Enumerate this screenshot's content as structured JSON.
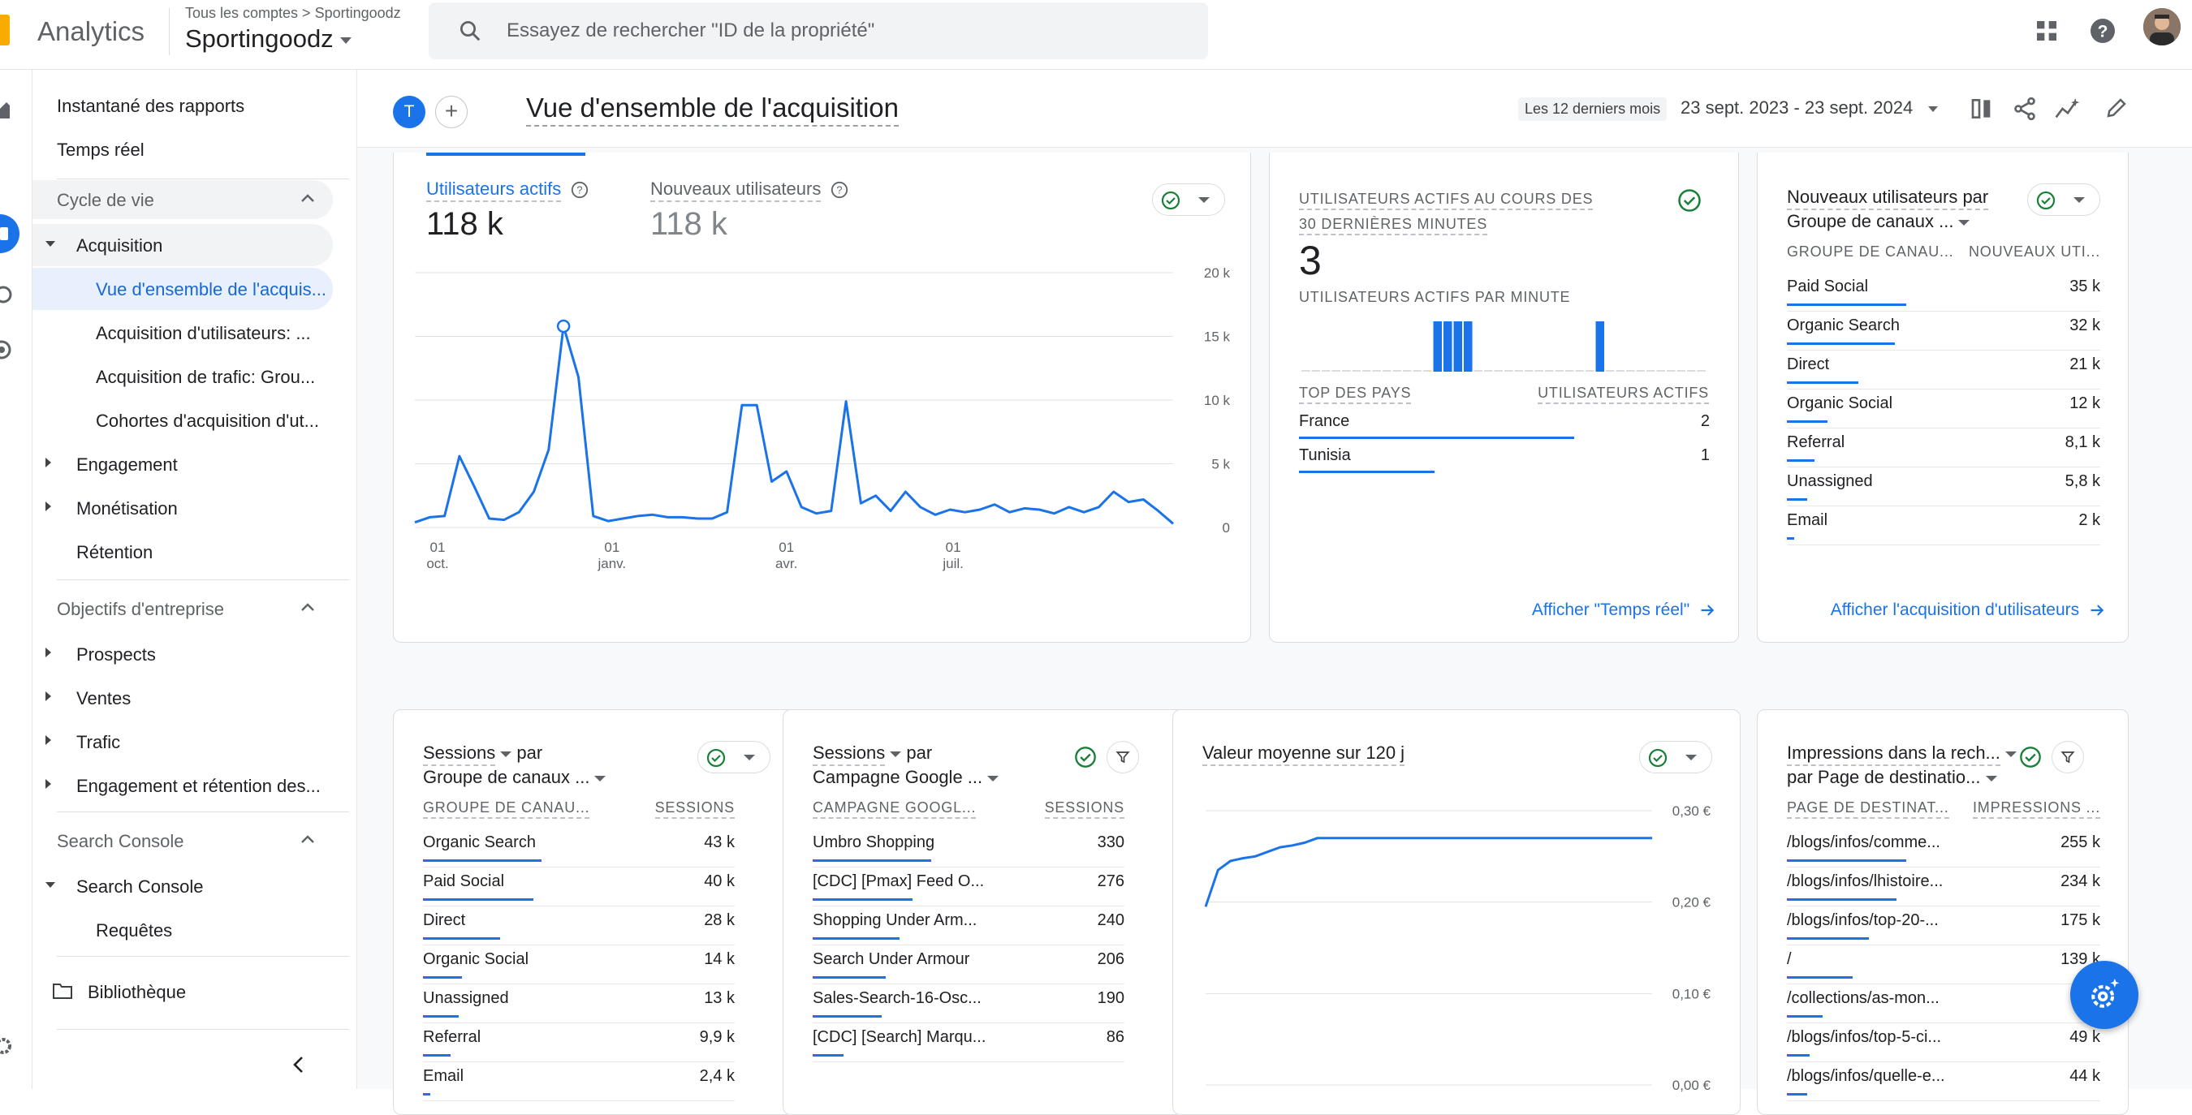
{
  "topbar": {
    "app_name": "Analytics",
    "breadcrumb": "Tous les comptes > Sportingoodz",
    "property": "Sportingoodz",
    "search_placeholder": "Essayez de rechercher \"ID de la propriété\""
  },
  "nav": {
    "snapshot": "Instantané des rapports",
    "realtime": "Temps réel",
    "lifecycle": "Cycle de vie",
    "acquisition": "Acquisition",
    "acq_overview": "Vue d'ensemble de l'acquis...",
    "acq_users": "Acquisition d'utilisateurs: ...",
    "acq_traffic": "Acquisition de trafic: Grou...",
    "acq_cohorts": "Cohortes d'acquisition d'ut...",
    "engagement": "Engagement",
    "monetization": "Monétisation",
    "retention": "Rétention",
    "business": "Objectifs d'entreprise",
    "leads": "Prospects",
    "sales": "Ventes",
    "traffic": "Trafic",
    "engagement_retention": "Engagement et rétention des...",
    "search_console_section": "Search Console",
    "search_console": "Search Console",
    "queries": "Requêtes",
    "library": "Bibliothèque"
  },
  "header": {
    "avatar_letter": "T",
    "add": "+",
    "title": "Vue d'ensemble de l'acquisition",
    "range_label": "Les 12 derniers mois",
    "range_value": "23 sept. 2023 - 23 sept. 2024"
  },
  "users_card": {
    "active_label": "Utilisateurs actifs",
    "active_value": "118 k",
    "new_label": "Nouveaux utilisateurs",
    "new_value": "118 k"
  },
  "chart_data": [
    {
      "type": "line",
      "title": "",
      "series": [
        {
          "name": "Utilisateurs actifs",
          "values": [
            400,
            800,
            900,
            5600,
            3200,
            700,
            600,
            1200,
            2800,
            6100,
            15800,
            11800,
            900,
            500,
            700,
            900,
            1000,
            800,
            800,
            700,
            700,
            1200,
            9600,
            9600,
            3600,
            4400,
            1600,
            1100,
            1300,
            9900,
            1900,
            2500,
            1300,
            2800,
            1600,
            1000,
            1400,
            1200,
            1400,
            1800,
            1200,
            1500,
            1400,
            1100,
            1600,
            1200,
            1600,
            2800,
            2000,
            2200,
            1300,
            300
          ]
        }
      ],
      "x_ticks": [
        "01 oct.",
        "01 janv.",
        "01 avr.",
        "01 juil."
      ],
      "y_ticks": [
        "20 k",
        "15 k",
        "10 k",
        "5 k",
        "0"
      ],
      "ylim": [
        0,
        20000
      ]
    },
    {
      "type": "bar",
      "title": "UTILISATEURS ACTIFS PAR MINUTE",
      "values": [
        0,
        0,
        0,
        0,
        0,
        0,
        0,
        0,
        0,
        0,
        0,
        0,
        0,
        1,
        1,
        1,
        1,
        0,
        0,
        0,
        0,
        0,
        0,
        0,
        0,
        0,
        0,
        0,
        0,
        1,
        0,
        0,
        0,
        0,
        0,
        0,
        0,
        0,
        0,
        0
      ]
    },
    {
      "type": "line",
      "title": "Valeur moyenne sur 120 j",
      "series": [
        {
          "name": "Valeur moyenne sur 120 j",
          "values": [
            0.195,
            0.235,
            0.245,
            0.248,
            0.25,
            0.255,
            0.26,
            0.262,
            0.265,
            0.27,
            0.27,
            0.27,
            0.27,
            0.27,
            0.27,
            0.27,
            0.27,
            0.27,
            0.27,
            0.27,
            0.27,
            0.27,
            0.27,
            0.27,
            0.27,
            0.27,
            0.27,
            0.27,
            0.27,
            0.27,
            0.27,
            0.27,
            0.27,
            0.27,
            0.27,
            0.27,
            0.27
          ]
        }
      ],
      "y_ticks": [
        "0,30 €",
        "0,20 €",
        "0,10 €",
        "0,00 €"
      ],
      "ylim": [
        0,
        0.3
      ]
    }
  ],
  "realtime_card": {
    "title_line1": "UTILISATEURS ACTIFS AU COURS DES",
    "title_line2": "30 DERNIÈRES MINUTES",
    "value": "3",
    "per_minute": "UTILISATEURS ACTIFS PAR MINUTE",
    "col_country": "TOP DES PAYS",
    "col_users": "UTILISATEURS ACTIFS",
    "rows": [
      {
        "name": "France",
        "value": "2",
        "share": 0.67
      },
      {
        "name": "Tunisia",
        "value": "1",
        "share": 0.33
      }
    ],
    "link": "Afficher \"Temps réel\""
  },
  "new_users_card": {
    "title_line1": "Nouveaux utilisateurs par",
    "title_line2": "Groupe de canaux ...",
    "col_left": "GROUPE DE CANAU...",
    "col_right": "NOUVEAUX UTI...",
    "rows": [
      {
        "name": "Paid Social",
        "value": "35 k",
        "share": 1.0
      },
      {
        "name": "Organic Search",
        "value": "32 k",
        "share": 0.91
      },
      {
        "name": "Direct",
        "value": "21 k",
        "share": 0.6
      },
      {
        "name": "Organic Social",
        "value": "12 k",
        "share": 0.34
      },
      {
        "name": "Referral",
        "value": "8,1 k",
        "share": 0.23
      },
      {
        "name": "Unassigned",
        "value": "5,8 k",
        "share": 0.17
      },
      {
        "name": "Email",
        "value": "2 k",
        "share": 0.06
      }
    ],
    "link": "Afficher l'acquisition d'utilisateurs"
  },
  "sessions_channel_card": {
    "title_line1": "Sessions",
    "title_par": "par",
    "title_line2": "Groupe de canaux ...",
    "col_left": "GROUPE DE CANAU...",
    "col_right": "SESSIONS",
    "rows": [
      {
        "name": "Organic Search",
        "value": "43 k",
        "share": 1.0
      },
      {
        "name": "Paid Social",
        "value": "40 k",
        "share": 0.93
      },
      {
        "name": "Direct",
        "value": "28 k",
        "share": 0.65
      },
      {
        "name": "Organic Social",
        "value": "14 k",
        "share": 0.33
      },
      {
        "name": "Unassigned",
        "value": "13 k",
        "share": 0.3
      },
      {
        "name": "Referral",
        "value": "9,9 k",
        "share": 0.23
      },
      {
        "name": "Email",
        "value": "2,4 k",
        "share": 0.06
      }
    ]
  },
  "sessions_campaign_card": {
    "title_line1": "Sessions",
    "title_par": "par",
    "title_line2": "Campagne Google ...",
    "col_left": "CAMPAGNE GOOGL...",
    "col_right": "SESSIONS",
    "rows": [
      {
        "name": "Umbro Shopping",
        "value": "330",
        "share": 1.0
      },
      {
        "name": "[CDC] [Pmax] Feed O...",
        "value": "276",
        "share": 0.84
      },
      {
        "name": "Shopping Under Arm...",
        "value": "240",
        "share": 0.73
      },
      {
        "name": "Search Under Armour",
        "value": "206",
        "share": 0.62
      },
      {
        "name": "Sales-Search-16-Osc...",
        "value": "190",
        "share": 0.58
      },
      {
        "name": "[CDC] [Search] Marqu...",
        "value": "86",
        "share": 0.26
      }
    ]
  },
  "ltv_card": {
    "title": "Valeur moyenne sur 120 j"
  },
  "impressions_card": {
    "title_line1": "Impressions dans la rech...",
    "title_line2": "par Page de destinatio...",
    "col_left": "PAGE DE DESTINAT...",
    "col_right": "IMPRESSIONS ...",
    "rows": [
      {
        "name": "/blogs/infos/comme...",
        "value": "255 k",
        "share": 1.0
      },
      {
        "name": "/blogs/infos/lhistoire...",
        "value": "234 k",
        "share": 0.92
      },
      {
        "name": "/blogs/infos/top-20-...",
        "value": "175 k",
        "share": 0.69
      },
      {
        "name": "/",
        "value": "139 k",
        "share": 0.55
      },
      {
        "name": "/collections/as-mon...",
        "value": "",
        "share": 0.3
      },
      {
        "name": "/blogs/infos/top-5-ci...",
        "value": "49 k",
        "share": 0.19
      },
      {
        "name": "/blogs/infos/quelle-e...",
        "value": "44 k",
        "share": 0.17
      }
    ]
  },
  "colors": {
    "accent": "#1a73e8",
    "ok": "#188038"
  }
}
